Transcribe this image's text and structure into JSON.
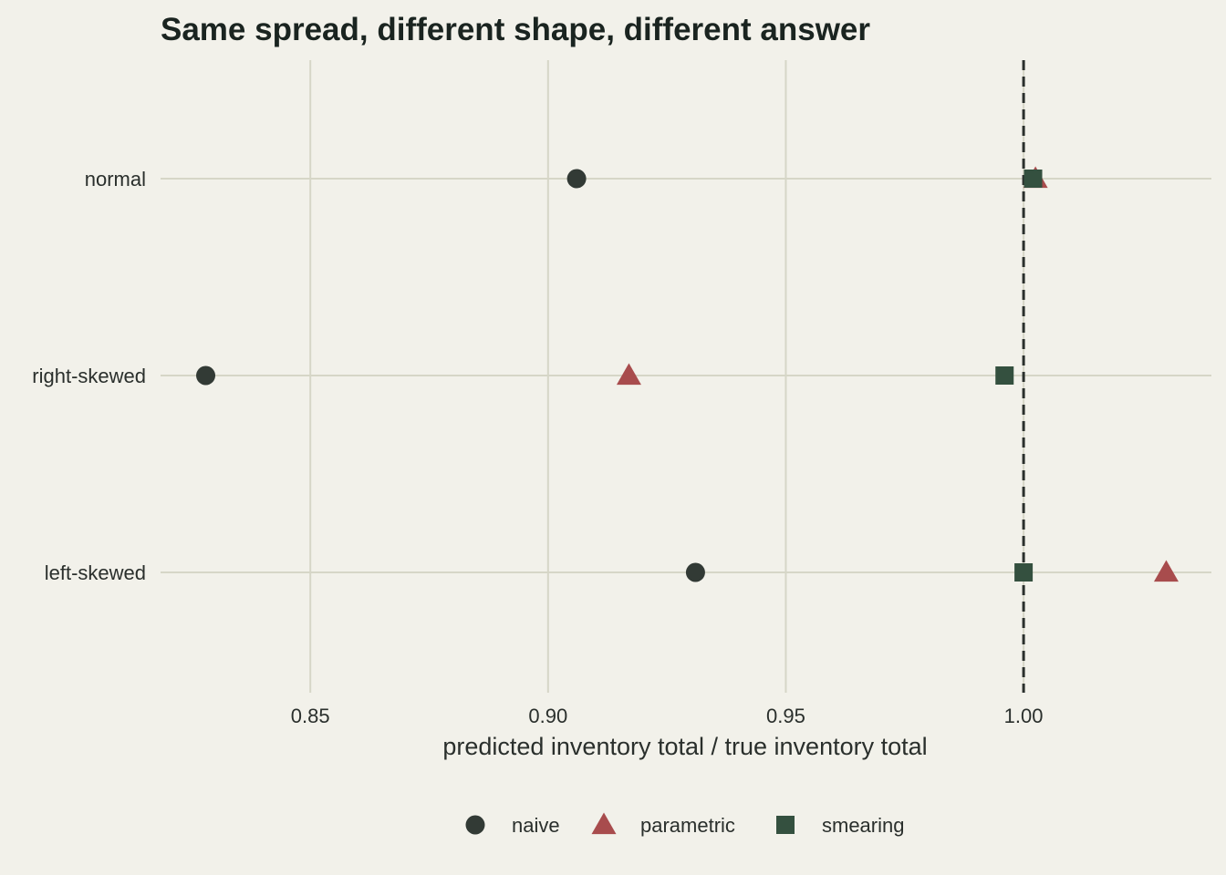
{
  "chart_data": {
    "type": "scatter",
    "title": "Same spread, different shape, different answer",
    "xlabel": "predicted inventory total / true inventory total",
    "ylabel": "",
    "xlim": [
      0.8185,
      1.0395
    ],
    "x_ticks": [
      0.85,
      0.9,
      0.95,
      1.0
    ],
    "x_tick_labels": [
      "0.85",
      "0.90",
      "0.95",
      "1.00"
    ],
    "categories": [
      "normal",
      "right-skewed",
      "left-skewed"
    ],
    "reference_line": {
      "x": 1.0,
      "style": "dashed"
    },
    "grid": true,
    "legend_position": "bottom",
    "series": [
      {
        "name": "naive",
        "shape": "circle",
        "color": "#323a35",
        "values": [
          0.906,
          0.828,
          0.931
        ]
      },
      {
        "name": "parametric",
        "shape": "triangle",
        "color": "#a84c4d",
        "values": [
          1.0025,
          0.917,
          1.03
        ]
      },
      {
        "name": "smearing",
        "shape": "square",
        "color": "#34503f",
        "values": [
          1.002,
          0.996,
          1.0
        ]
      }
    ]
  }
}
